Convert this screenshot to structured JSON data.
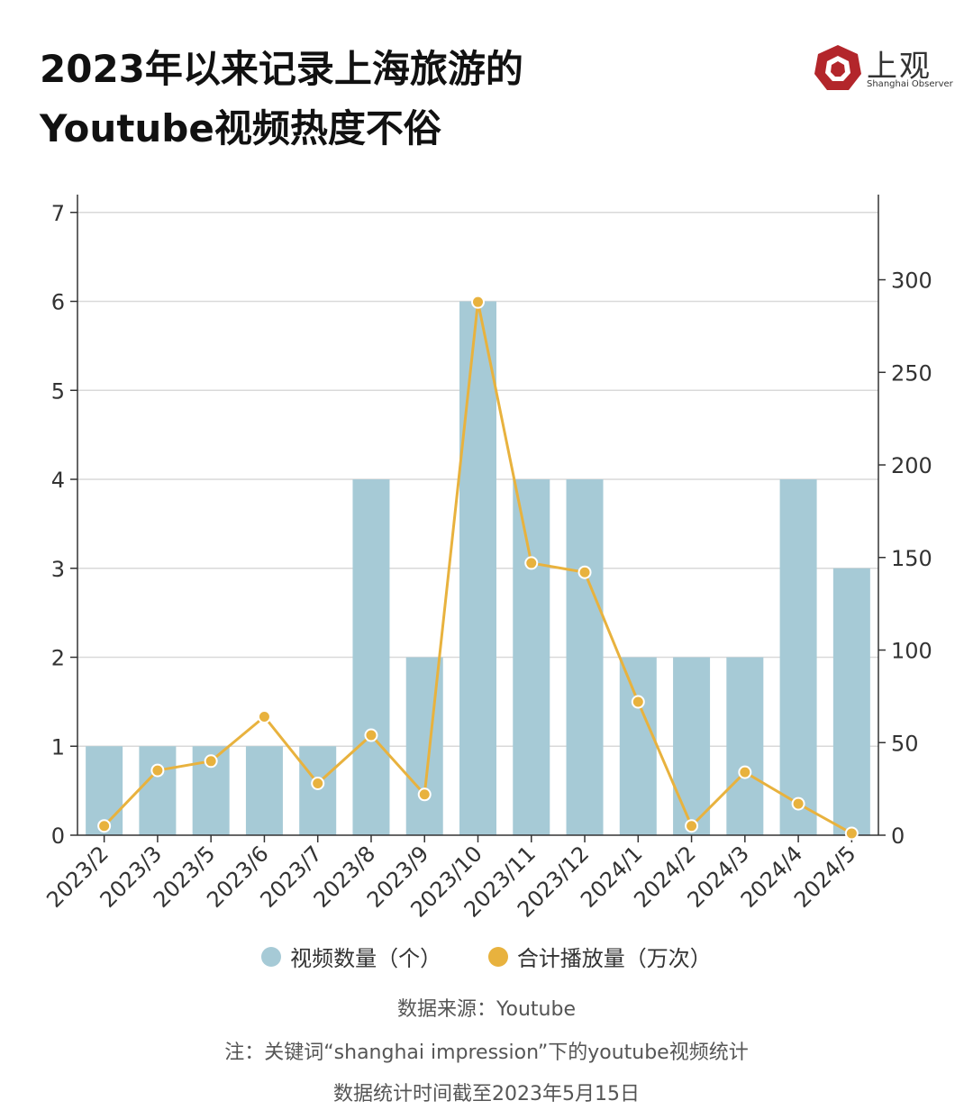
{
  "title_line1": "2023年以来记录上海旅游的",
  "title_line2": "Youtube视频热度不俗",
  "logo": {
    "cn": "上观",
    "en": "Shanghai Observer"
  },
  "colors": {
    "bar": "#a6cad6",
    "line": "#e8b23e",
    "axis": "#333333",
    "grid": "#d9d9d9"
  },
  "chart_data": {
    "type": "bar",
    "categories": [
      "2023/2",
      "2023/3",
      "2023/5",
      "2023/6",
      "2023/7",
      "2023/8",
      "2023/9",
      "2023/10",
      "2023/11",
      "2023/12",
      "2024/1",
      "2024/2",
      "2024/3",
      "2024/4",
      "2024/5"
    ],
    "series": [
      {
        "name": "视频数量（个）",
        "type": "bar",
        "axis": "left",
        "values": [
          1,
          1,
          1,
          1,
          1,
          4,
          2,
          6,
          4,
          4,
          2,
          2,
          2,
          4,
          3
        ]
      },
      {
        "name": "合计播放量（万次）",
        "type": "line",
        "axis": "right",
        "values": [
          5,
          35,
          40,
          64,
          28,
          54,
          22,
          288,
          147,
          142,
          72,
          5,
          34,
          17,
          1
        ]
      }
    ],
    "y_left": {
      "ylim": [
        0,
        7.2
      ],
      "ticks": [
        0,
        1,
        2,
        3,
        4,
        5,
        6,
        7
      ]
    },
    "y_right": {
      "ylim": [
        0,
        346
      ],
      "ticks": [
        0,
        50,
        100,
        150,
        200,
        250,
        300
      ]
    },
    "grid": true,
    "legend": "bottom-center"
  },
  "source": "数据来源：Youtube",
  "note": "注：关键词“shanghai impression”下的youtube视频统计",
  "date_note": "数据统计时间截至2023年5月15日"
}
